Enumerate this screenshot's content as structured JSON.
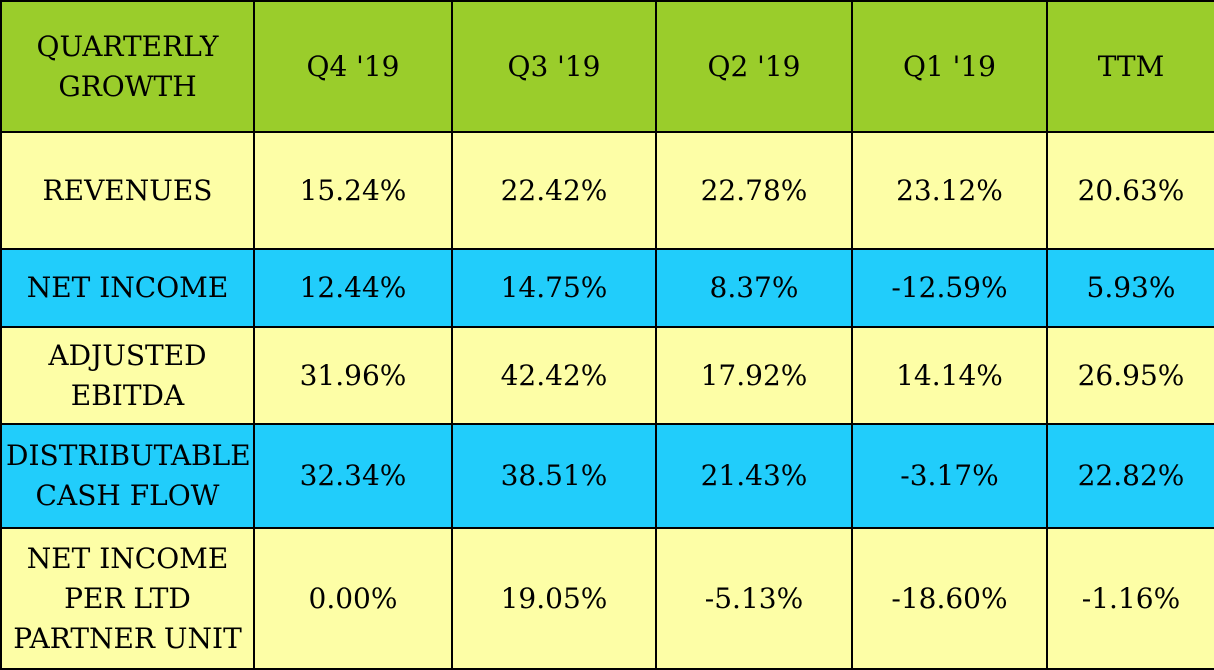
{
  "colors": {
    "header_background": "#9acd2b",
    "row_yellow": "#fdfea6",
    "row_blue": "#21cdfb",
    "border": "#000000"
  },
  "chart_data": {
    "type": "table",
    "corner_label_lines": [
      "QUARTERLY",
      "GROWTH"
    ],
    "columns": [
      "Q4 '19",
      "Q3 '19",
      "Q2 '19",
      "Q1 '19",
      "TTM"
    ],
    "rows": [
      {
        "label_lines": [
          "REVENUES"
        ],
        "values": [
          "15.24%",
          "22.42%",
          "22.78%",
          "23.12%",
          "20.63%"
        ],
        "background": "#fdfea6"
      },
      {
        "label_lines": [
          "NET INCOME"
        ],
        "values": [
          "12.44%",
          "14.75%",
          "8.37%",
          "-12.59%",
          "5.93%"
        ],
        "background": "#21cdfb"
      },
      {
        "label_lines": [
          "ADJUSTED",
          "EBITDA"
        ],
        "values": [
          "31.96%",
          "42.42%",
          "17.92%",
          "14.14%",
          "26.95%"
        ],
        "background": "#fdfea6"
      },
      {
        "label_lines": [
          "DISTRIBUTABLE",
          "CASH FLOW"
        ],
        "values": [
          "32.34%",
          "38.51%",
          "21.43%",
          "-3.17%",
          "22.82%"
        ],
        "background": "#21cdfb"
      },
      {
        "label_lines": [
          "NET INCOME",
          "PER LTD",
          "PARTNER UNIT"
        ],
        "values": [
          "0.00%",
          "19.05%",
          "-5.13%",
          "-18.60%",
          "-1.16%"
        ],
        "background": "#fdfea6"
      }
    ]
  }
}
